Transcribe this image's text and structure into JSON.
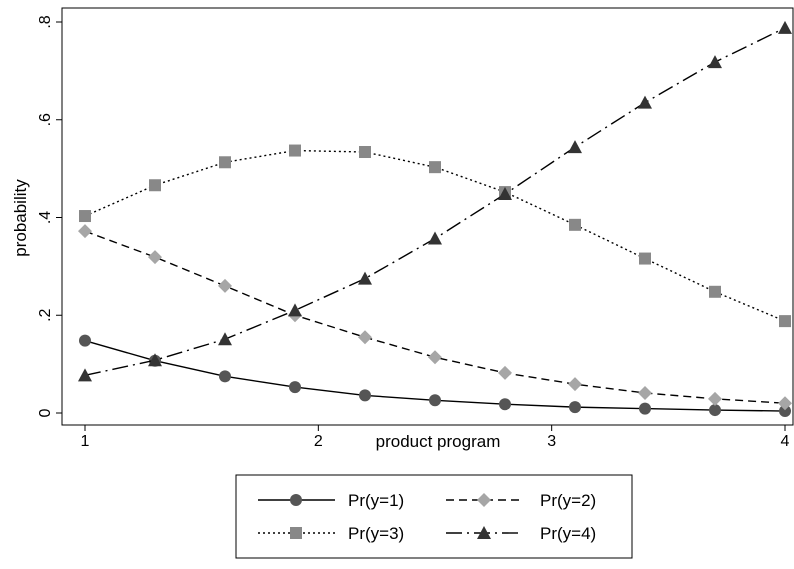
{
  "chart_data": {
    "type": "line",
    "title": "",
    "xlabel": "product program",
    "ylabel": "probability",
    "xlim": [
      1,
      4
    ],
    "ylim": [
      0,
      0.8
    ],
    "xticks": [
      1,
      2,
      3,
      4
    ],
    "xtick_labels": [
      "1",
      "2",
      "3",
      "4"
    ],
    "yticks": [
      0,
      0.2,
      0.4,
      0.6,
      0.8
    ],
    "ytick_labels": [
      "0",
      ".2",
      ".4",
      ".6",
      ".8"
    ],
    "grid": false,
    "legend_position": "bottom",
    "x": [
      1,
      1.3,
      1.6,
      1.9,
      2.2,
      2.5,
      2.8,
      3.1,
      3.4,
      3.7,
      4
    ],
    "series": [
      {
        "name": "Pr(y=1)",
        "marker": "circle",
        "dash": "solid",
        "color": "#555555",
        "values": [
          0.148,
          0.107,
          0.075,
          0.053,
          0.036,
          0.026,
          0.018,
          0.012,
          0.009,
          0.006,
          0.004
        ]
      },
      {
        "name": "Pr(y=2)",
        "marker": "diamond",
        "dash": "dashed",
        "color": "#a6a6a6",
        "values": [
          0.372,
          0.319,
          0.26,
          0.2,
          0.155,
          0.114,
          0.082,
          0.059,
          0.041,
          0.029,
          0.02
        ]
      },
      {
        "name": "Pr(y=3)",
        "marker": "square",
        "dash": "dotted",
        "color": "#888888",
        "values": [
          0.403,
          0.466,
          0.513,
          0.537,
          0.534,
          0.503,
          0.452,
          0.385,
          0.316,
          0.248,
          0.188
        ]
      },
      {
        "name": "Pr(y=4)",
        "marker": "triangle",
        "dash": "longdashdot",
        "color": "#333333",
        "values": [
          0.077,
          0.108,
          0.151,
          0.21,
          0.275,
          0.357,
          0.448,
          0.544,
          0.635,
          0.718,
          0.788
        ]
      }
    ]
  }
}
